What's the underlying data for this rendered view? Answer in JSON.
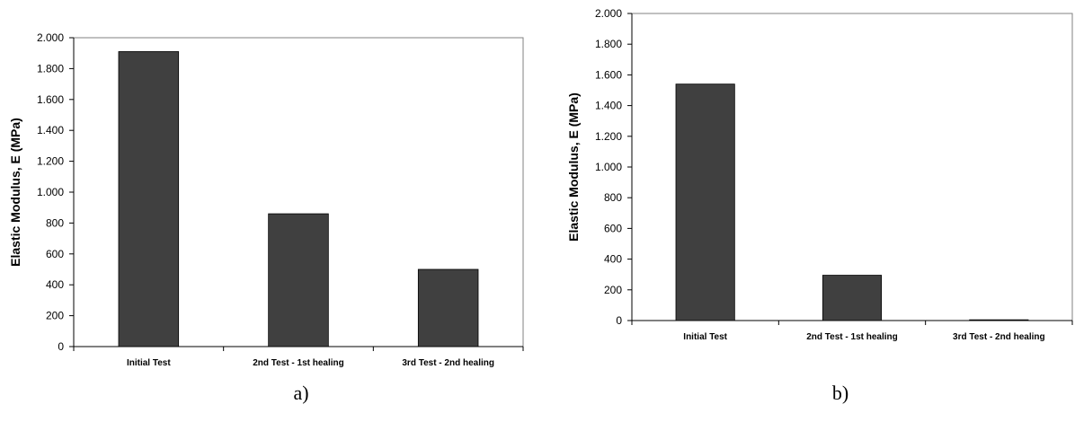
{
  "chart_data": [
    {
      "type": "bar",
      "caption": "a)",
      "ylabel": "Elastic Modulus, E (MPa)",
      "xlabel": "",
      "categories": [
        "Initial Test",
        "2nd Test - 1st healing",
        "3rd Test - 2nd healing"
      ],
      "values": [
        1910,
        860,
        500
      ],
      "ylim": [
        0,
        2000
      ],
      "yticks": [
        0,
        200,
        400,
        600,
        800,
        1000,
        1200,
        1400,
        1600,
        1800,
        2000
      ],
      "ytick_labels": [
        "0",
        "200",
        "400",
        "600",
        "800",
        "1.000",
        "1.200",
        "1.400",
        "1.600",
        "1.800",
        "2.000"
      ],
      "grid": false,
      "bar_color": "#404040"
    },
    {
      "type": "bar",
      "caption": "b)",
      "ylabel": "Elastic Modulus, E (MPa)",
      "xlabel": "",
      "categories": [
        "Initial Test",
        "2nd Test - 1st healing",
        "3rd Test - 2nd healing"
      ],
      "values": [
        1540,
        295,
        5
      ],
      "ylim": [
        0,
        2000
      ],
      "yticks": [
        0,
        200,
        400,
        600,
        800,
        1000,
        1200,
        1400,
        1600,
        1800,
        2000
      ],
      "ytick_labels": [
        "0",
        "200",
        "400",
        "600",
        "800",
        "1.000",
        "1.200",
        "1.400",
        "1.600",
        "1.800",
        "2.000"
      ],
      "grid": false,
      "bar_color": "#404040"
    }
  ]
}
